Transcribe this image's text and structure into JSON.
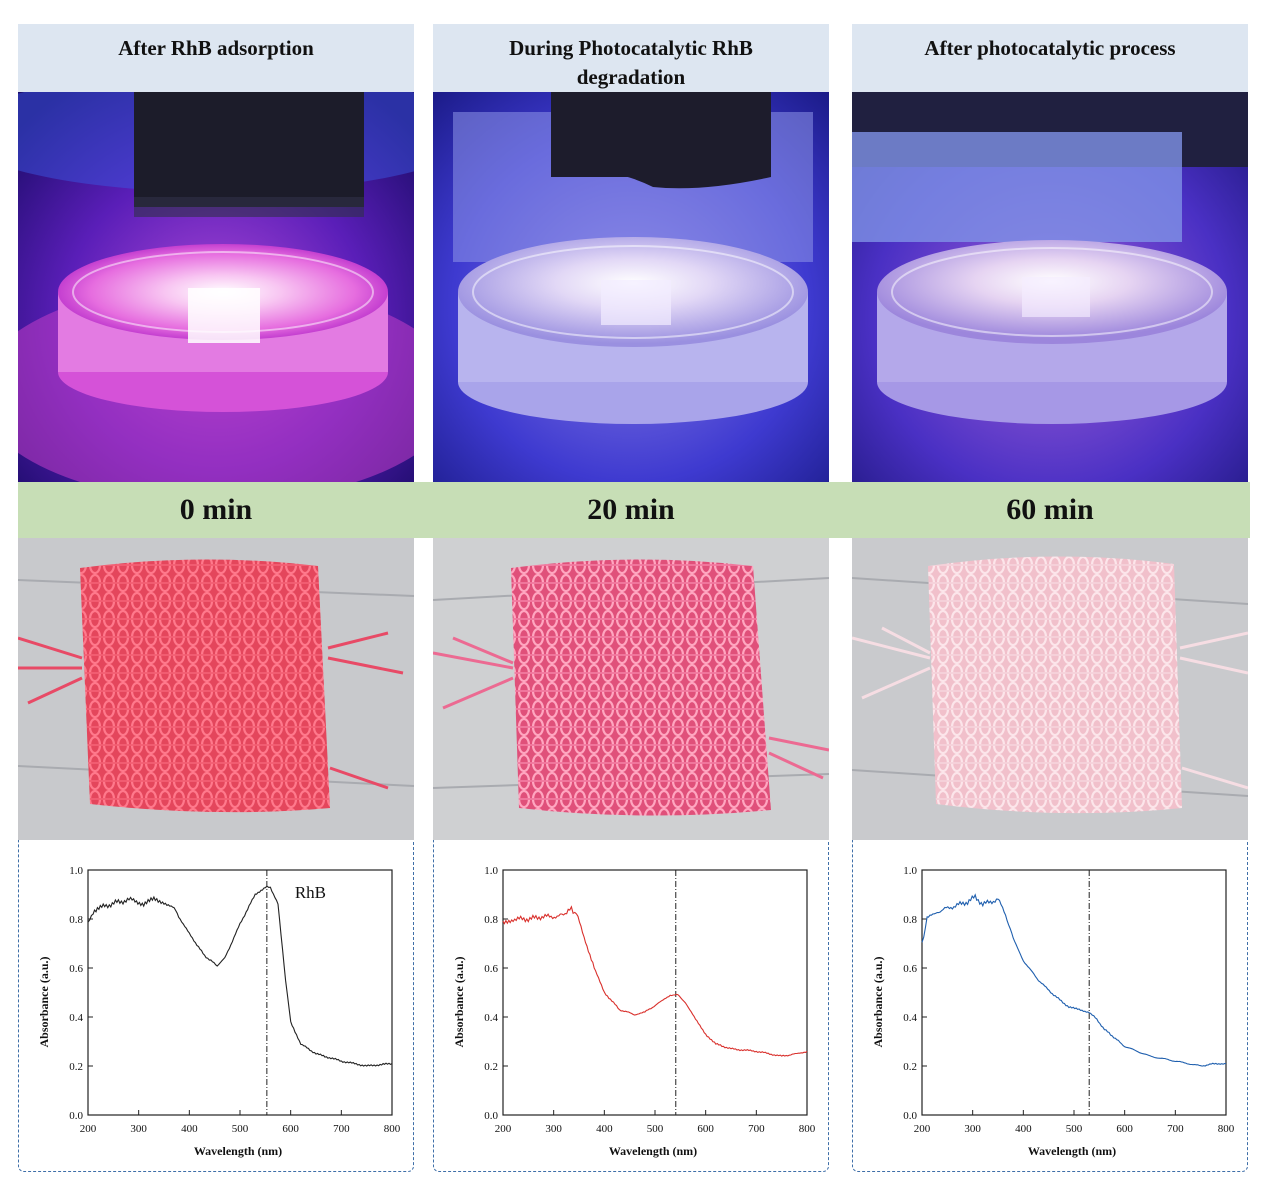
{
  "panels": [
    {
      "heading": "After RhB adsorption",
      "time": "0 min"
    },
    {
      "heading": "During Photocatalytic RhB degradation",
      "time": "20 min"
    },
    {
      "heading": "After photocatalytic process",
      "time": "60 min"
    }
  ],
  "colors": {
    "panel_border": "#3f6fa8",
    "header_fill": "#dde6f1",
    "time_band": "#c7deb6",
    "series_0min": "#222222",
    "series_20min": "#d9302c",
    "series_60min": "#1f5fae"
  },
  "chart_data": [
    {
      "type": "line",
      "xlabel": "Wavelength (nm)",
      "ylabel": "Absorbance (a.u.)",
      "xlim": [
        200,
        800
      ],
      "ylim": [
        0.0,
        1.0
      ],
      "xticks": [
        200,
        300,
        400,
        500,
        600,
        700,
        800
      ],
      "yticks": [
        0.0,
        0.2,
        0.4,
        0.6,
        0.8,
        1.0
      ],
      "annotation": "RhB",
      "marker_line_x": 553,
      "color": "#222222",
      "series": [
        {
          "x": [
            200,
            210,
            230,
            260,
            290,
            310,
            330,
            350,
            370,
            400,
            430,
            455,
            470,
            500,
            530,
            550,
            560,
            575,
            590,
            600,
            620,
            650,
            700,
            750,
            800
          ],
          "y": [
            0.78,
            0.83,
            0.85,
            0.87,
            0.88,
            0.86,
            0.88,
            0.87,
            0.84,
            0.74,
            0.65,
            0.61,
            0.64,
            0.78,
            0.9,
            0.93,
            0.93,
            0.86,
            0.55,
            0.38,
            0.29,
            0.25,
            0.22,
            0.2,
            0.21
          ]
        }
      ]
    },
    {
      "type": "line",
      "xlabel": "Wavelength (nm)",
      "ylabel": "Absorbance (a.u.)",
      "xlim": [
        200,
        800
      ],
      "ylim": [
        0.0,
        1.0
      ],
      "xticks": [
        200,
        300,
        400,
        500,
        600,
        700,
        800
      ],
      "yticks": [
        0.0,
        0.2,
        0.4,
        0.6,
        0.8,
        1.0
      ],
      "marker_line_x": 541,
      "color": "#d9302c",
      "series": [
        {
          "x": [
            200,
            220,
            250,
            280,
            310,
            335,
            345,
            360,
            380,
            400,
            430,
            460,
            480,
            510,
            530,
            545,
            560,
            580,
            600,
            620,
            650,
            700,
            750,
            780,
            800
          ],
          "y": [
            0.78,
            0.8,
            0.8,
            0.81,
            0.81,
            0.84,
            0.82,
            0.73,
            0.6,
            0.5,
            0.43,
            0.41,
            0.42,
            0.46,
            0.49,
            0.49,
            0.46,
            0.39,
            0.33,
            0.29,
            0.27,
            0.26,
            0.24,
            0.25,
            0.26
          ]
        }
      ]
    },
    {
      "type": "line",
      "xlabel": "Wavelength (nm)",
      "ylabel": "Absorbance (a.u.)",
      "xlim": [
        200,
        800
      ],
      "ylim": [
        0.0,
        1.0
      ],
      "xticks": [
        200,
        300,
        400,
        500,
        600,
        700,
        800
      ],
      "yticks": [
        0.0,
        0.2,
        0.4,
        0.6,
        0.8,
        1.0
      ],
      "marker_line_x": 530,
      "color": "#1f5fae",
      "series": [
        {
          "x": [
            200,
            210,
            230,
            260,
            290,
            305,
            320,
            350,
            365,
            380,
            400,
            430,
            460,
            490,
            510,
            530,
            545,
            560,
            600,
            650,
            700,
            750,
            780,
            800
          ],
          "y": [
            0.7,
            0.8,
            0.83,
            0.85,
            0.87,
            0.89,
            0.86,
            0.88,
            0.82,
            0.72,
            0.63,
            0.55,
            0.49,
            0.44,
            0.43,
            0.42,
            0.39,
            0.35,
            0.28,
            0.24,
            0.22,
            0.2,
            0.21,
            0.21
          ]
        }
      ]
    }
  ]
}
